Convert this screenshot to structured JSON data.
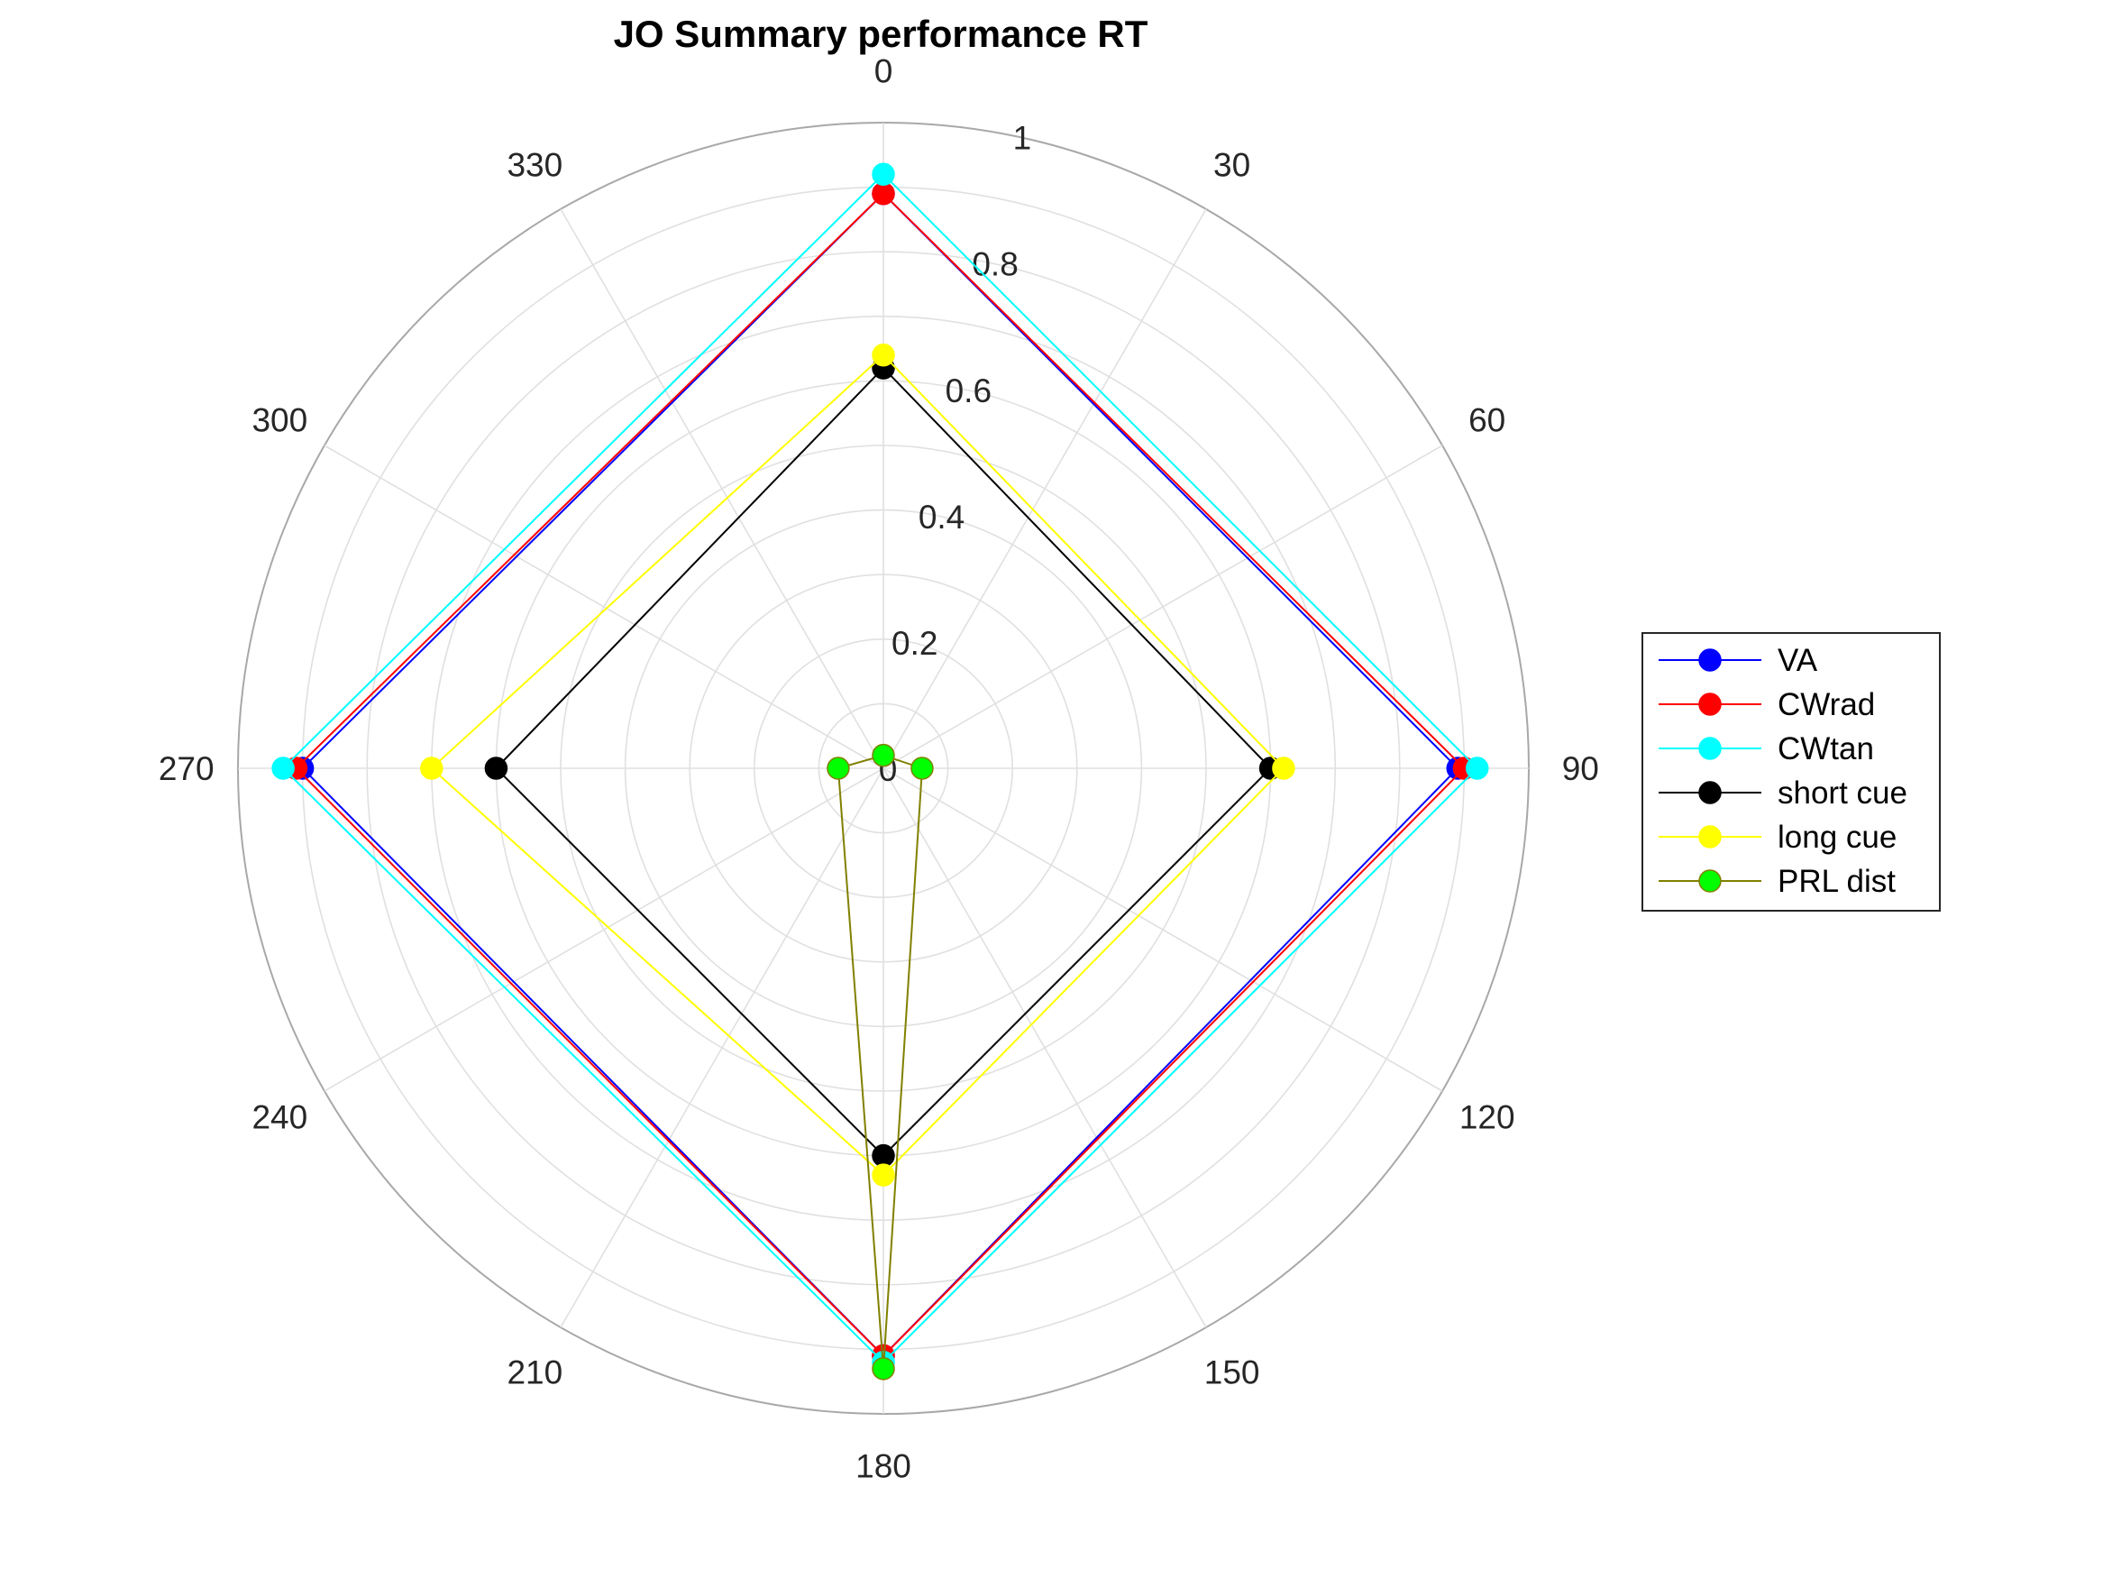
{
  "chart_data": {
    "type": "polar-line",
    "title": "JO Summary performance RT",
    "theta_ticks": [
      "0",
      "30",
      "60",
      "90",
      "120",
      "150",
      "180",
      "210",
      "240",
      "270",
      "300",
      "330"
    ],
    "r_ticks": [
      "0",
      "0.2",
      "0.4",
      "0.6",
      "0.8",
      "1"
    ],
    "rlim": [
      0,
      1
    ],
    "theta_direction": "clockwise",
    "theta_zero": "top",
    "grid": true,
    "legend_position": "right",
    "angles_deg": [
      0,
      90,
      180,
      270
    ],
    "series": [
      {
        "name": "VA",
        "color": "#0000ff",
        "line_color": "#0000ff",
        "values": [
          0.89,
          0.89,
          0.91,
          0.9
        ]
      },
      {
        "name": "CWrad",
        "color": "#ff0000",
        "line_color": "#ff0000",
        "values": [
          0.89,
          0.9,
          0.91,
          0.91
        ]
      },
      {
        "name": "CWtan",
        "color": "#00ffff",
        "line_color": "#00ffff",
        "values": [
          0.92,
          0.92,
          0.92,
          0.93
        ]
      },
      {
        "name": "short cue",
        "color": "#000000",
        "line_color": "#000000",
        "values": [
          0.62,
          0.6,
          0.6,
          0.6
        ]
      },
      {
        "name": "long cue",
        "color": "#ffff00",
        "line_color": "#ffff00",
        "values": [
          0.64,
          0.62,
          0.63,
          0.7
        ]
      },
      {
        "name": "PRL dist",
        "color": "#00ff00",
        "line_color": "#808000",
        "values": [
          0.02,
          0.06,
          0.93,
          0.07
        ]
      }
    ]
  }
}
